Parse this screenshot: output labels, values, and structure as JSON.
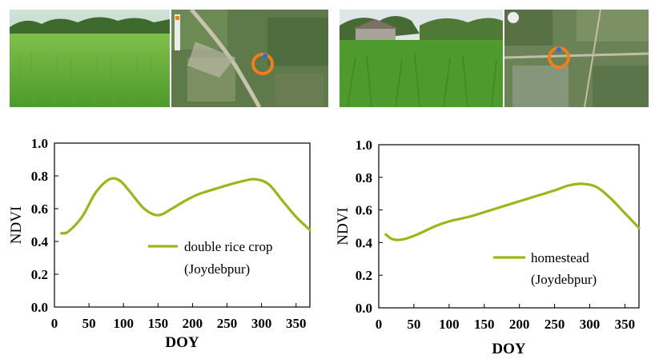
{
  "colors": {
    "line": "#99b817",
    "marker": "#f07f16"
  },
  "photos": [
    {
      "name": "rice-field-photo",
      "kind": "field"
    },
    {
      "name": "rice-field-map",
      "kind": "map",
      "icon": "location-marker-icon"
    },
    {
      "name": "homestead-photo",
      "kind": "field-house"
    },
    {
      "name": "homestead-map",
      "kind": "map",
      "icon": "location-marker-icon"
    }
  ],
  "chart_data": [
    {
      "type": "line",
      "xlabel": "DOY",
      "ylabel": "NDVI",
      "xlim": [
        0,
        370
      ],
      "ylim": [
        0,
        1.0
      ],
      "x_ticks": [
        "0",
        "50",
        "100",
        "150",
        "200",
        "250",
        "300",
        "350"
      ],
      "y_ticks": [
        "0.0",
        "0.2",
        "0.4",
        "0.6",
        "0.8",
        "1.0"
      ],
      "legend": "lower-right",
      "series": [
        {
          "name_line1": "double rice crop",
          "name_line2": "(Joydebpur)",
          "x": [
            10,
            20,
            40,
            60,
            80,
            95,
            110,
            130,
            150,
            170,
            190,
            210,
            240,
            265,
            290,
            310,
            330,
            350,
            370
          ],
          "y": [
            0.45,
            0.46,
            0.55,
            0.7,
            0.78,
            0.77,
            0.7,
            0.6,
            0.56,
            0.6,
            0.65,
            0.69,
            0.73,
            0.76,
            0.78,
            0.75,
            0.65,
            0.55,
            0.47
          ]
        }
      ]
    },
    {
      "type": "line",
      "xlabel": "DOY",
      "ylabel": "NDVI",
      "xlim": [
        0,
        370
      ],
      "ylim": [
        0,
        1.0
      ],
      "x_ticks": [
        "0",
        "50",
        "100",
        "150",
        "200",
        "250",
        "300",
        "350"
      ],
      "y_ticks": [
        "0.0",
        "0.2",
        "0.4",
        "0.6",
        "0.8",
        "1.0"
      ],
      "legend": "lower-right",
      "series": [
        {
          "name_line1": "homestead",
          "name_line2": "(Joydebpur)",
          "x": [
            10,
            20,
            35,
            55,
            80,
            100,
            130,
            160,
            190,
            220,
            250,
            270,
            290,
            310,
            330,
            350,
            370
          ],
          "y": [
            0.45,
            0.42,
            0.42,
            0.45,
            0.5,
            0.53,
            0.56,
            0.6,
            0.64,
            0.68,
            0.72,
            0.75,
            0.76,
            0.74,
            0.67,
            0.58,
            0.49
          ]
        }
      ]
    }
  ]
}
